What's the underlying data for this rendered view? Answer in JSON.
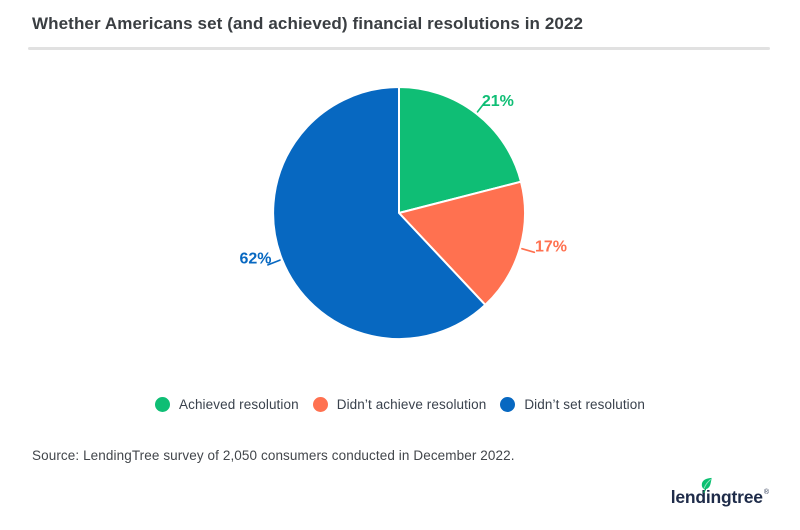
{
  "header": {
    "title": "Whether Americans set (and achieved) financial resolutions in 2022"
  },
  "chart_data": {
    "type": "pie",
    "title": "Whether Americans set (and achieved) financial resolutions in 2022",
    "start_angle_deg": 0,
    "direction": "clockwise",
    "legend_position": "bottom",
    "slices": [
      {
        "label": "Achieved resolution",
        "value": 21,
        "display": "21%",
        "color": "#0fbe75"
      },
      {
        "label": "Didn’t achieve resolution",
        "value": 17,
        "display": "17%",
        "color": "#ff7150"
      },
      {
        "label": "Didn’t set resolution",
        "value": 62,
        "display": "62%",
        "color": "#0768c1"
      }
    ]
  },
  "footer": {
    "source": "Source: LendingTree survey of 2,050 consumers conducted in December 2022.",
    "brand": "lendingtree",
    "registered_mark": "®"
  }
}
